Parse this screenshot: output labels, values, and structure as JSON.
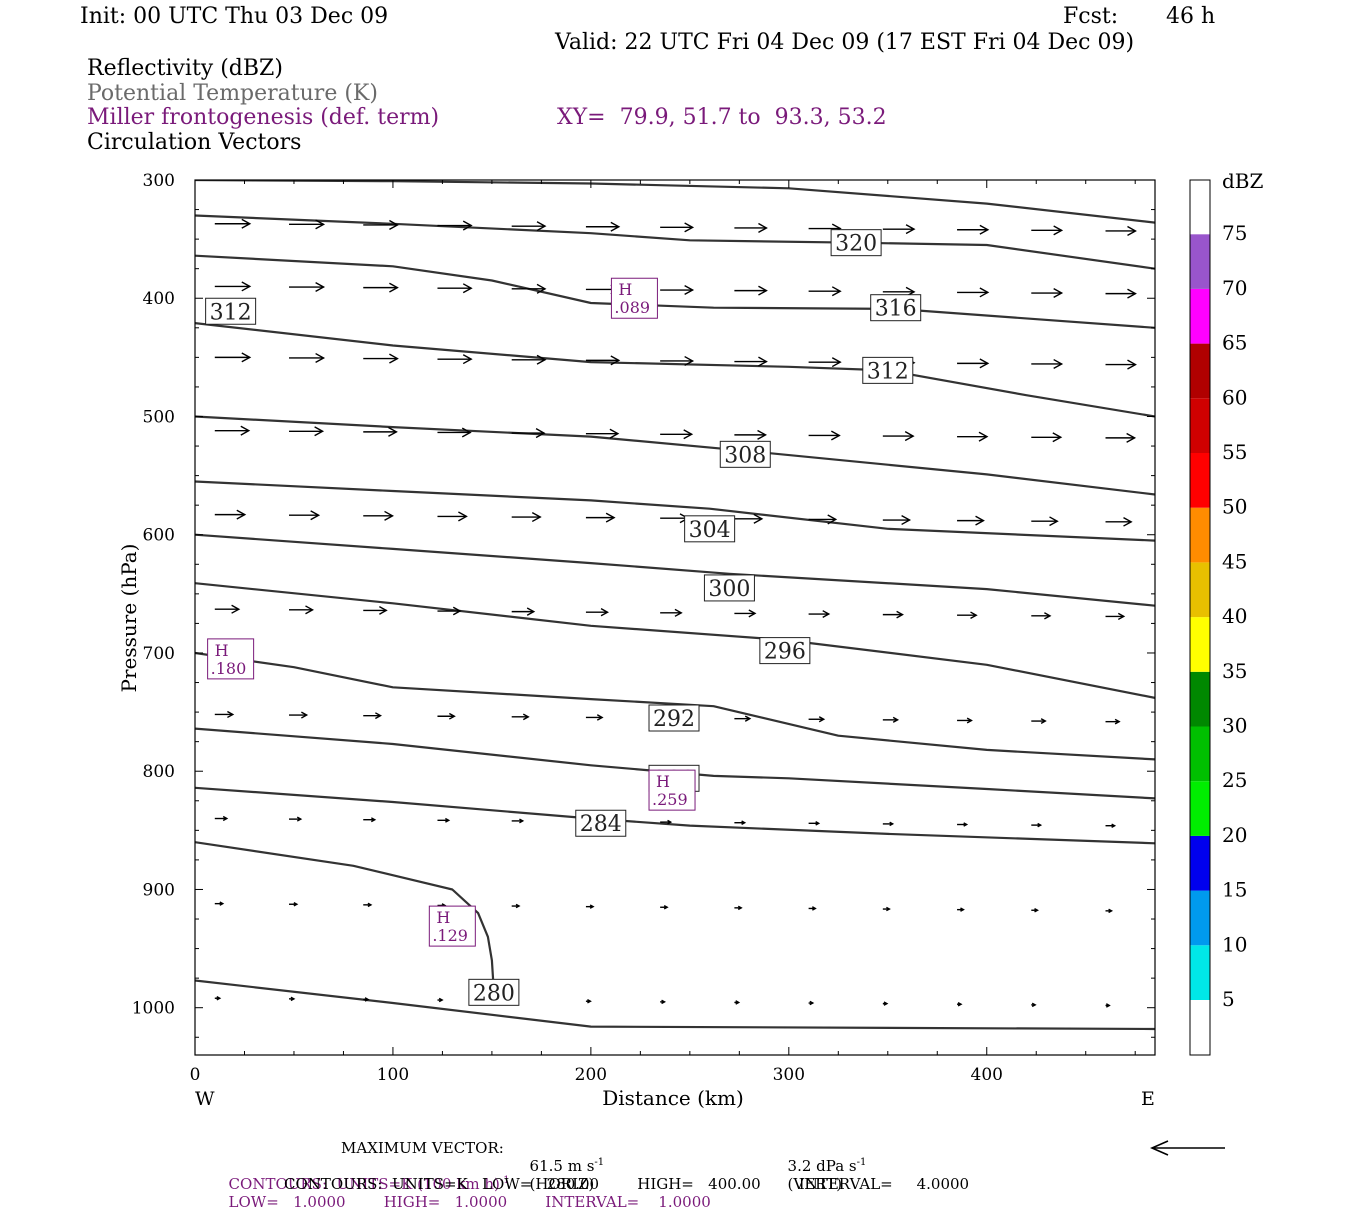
{
  "header": {
    "init": "Init: 00 UTC Thu 03 Dec 09",
    "fcst_label": "Fcst:",
    "fcst_value": "46 h",
    "valid": "Valid: 22 UTC Fri 04 Dec 09 (17 EST Fri 04 Dec 09)",
    "fields": {
      "reflectivity": "Reflectivity (dBZ)",
      "theta": "Potential Temperature (K)",
      "frontogenesis": "Miller frontogenesis (def. term)",
      "circulation": "Circulation Vectors"
    },
    "xy": "XY=  79.9, 51.7 to  93.3, 53.2"
  },
  "colors": {
    "contour": "#333333",
    "purple": "#7a1a7a",
    "theta_text": "#6a6a6a"
  },
  "chart_data": {
    "type": "line",
    "title": "",
    "xlabel": "Distance (km)",
    "ylabel": "Pressure (hPa)",
    "xlim": [
      0,
      485
    ],
    "ylim": [
      1040,
      300
    ],
    "y_scale": "linear-inverted",
    "x_ticks": [
      "0",
      "100",
      "200",
      "300",
      "400"
    ],
    "y_ticks": [
      "300",
      "400",
      "500",
      "600",
      "700",
      "800",
      "900",
      "1000"
    ],
    "x_ends": {
      "left": "W",
      "right": "E"
    },
    "theta_contours": [
      {
        "label": "284",
        "label_at": [
          205,
          844
        ],
        "points": [
          [
            0,
            814
          ],
          [
            100,
            826
          ],
          [
            200,
            840
          ],
          [
            250,
            846
          ],
          [
            350,
            853
          ],
          [
            485,
            861
          ]
        ]
      },
      {
        "label": "288",
        "label_at": [
          242,
          806
        ],
        "points": [
          [
            0,
            764
          ],
          [
            100,
            777
          ],
          [
            200,
            795
          ],
          [
            262,
            804
          ],
          [
            300,
            806
          ],
          [
            400,
            815
          ],
          [
            485,
            823
          ]
        ]
      },
      {
        "label": "292",
        "label_at": [
          242,
          755
        ],
        "points": [
          [
            0,
            700
          ],
          [
            50,
            712
          ],
          [
            100,
            729
          ],
          [
            200,
            739
          ],
          [
            262,
            745
          ],
          [
            325,
            770
          ],
          [
            400,
            782
          ],
          [
            485,
            790
          ]
        ]
      },
      {
        "label": "296",
        "label_at": [
          298,
          698
        ],
        "points": [
          [
            0,
            641
          ],
          [
            100,
            658
          ],
          [
            200,
            677
          ],
          [
            298,
            689
          ],
          [
            400,
            710
          ],
          [
            485,
            738
          ]
        ]
      },
      {
        "label": "300",
        "label_at": [
          270,
          645
        ],
        "points": [
          [
            0,
            600
          ],
          [
            100,
            612
          ],
          [
            200,
            624
          ],
          [
            270,
            633
          ],
          [
            400,
            646
          ],
          [
            485,
            660
          ]
        ]
      },
      {
        "label": "304",
        "label_at": [
          260,
          595
        ],
        "points": [
          [
            0,
            555
          ],
          [
            100,
            563
          ],
          [
            200,
            571
          ],
          [
            260,
            578
          ],
          [
            350,
            595
          ],
          [
            485,
            605
          ]
        ]
      },
      {
        "label": "308",
        "label_at": [
          278,
          532
        ],
        "points": [
          [
            0,
            500
          ],
          [
            100,
            509
          ],
          [
            200,
            517
          ],
          [
            278,
            529
          ],
          [
            400,
            549
          ],
          [
            485,
            566
          ]
        ]
      },
      {
        "label": "312",
        "label_at": [
          350,
          461
        ],
        "points": [
          [
            0,
            421
          ],
          [
            100,
            440
          ],
          [
            200,
            454
          ],
          [
            300,
            458
          ],
          [
            350,
            461
          ],
          [
            420,
            482
          ],
          [
            485,
            500
          ]
        ]
      },
      {
        "label": "312",
        "label_at": [
          18,
          411
        ],
        "points": []
      },
      {
        "label": "316",
        "label_at": [
          354,
          408
        ],
        "points": [
          [
            0,
            364
          ],
          [
            100,
            373
          ],
          [
            150,
            385
          ],
          [
            200,
            404
          ],
          [
            262,
            408
          ],
          [
            354,
            409
          ],
          [
            485,
            425
          ]
        ]
      },
      {
        "label": "320",
        "label_at": [
          334,
          353
        ],
        "points": [
          [
            0,
            330
          ],
          [
            100,
            337
          ],
          [
            200,
            345
          ],
          [
            250,
            351
          ],
          [
            334,
            353
          ],
          [
            400,
            355
          ],
          [
            485,
            375
          ]
        ]
      },
      {
        "label": "",
        "label_at": null,
        "points": [
          [
            0,
            300
          ],
          [
            100,
            301
          ],
          [
            200,
            303
          ],
          [
            300,
            307
          ],
          [
            400,
            320
          ],
          [
            485,
            336
          ]
        ]
      },
      {
        "label": "280",
        "label_at": [
          151,
          987
        ],
        "points": [
          [
            0,
            860
          ],
          [
            80,
            880
          ],
          [
            130,
            900
          ],
          [
            143,
            920
          ],
          [
            148,
            940
          ],
          [
            150,
            960
          ],
          [
            151,
            987
          ]
        ]
      },
      {
        "label": "",
        "label_at": null,
        "points": [
          [
            0,
            977
          ],
          [
            100,
            996
          ],
          [
            200,
            1016
          ],
          [
            485,
            1018
          ]
        ]
      }
    ],
    "frontogenesis_maxima": [
      {
        "mark": "H",
        "value": ".089",
        "at": [
          222,
          400
        ]
      },
      {
        "mark": "H",
        "value": ".180",
        "at": [
          18,
          705
        ]
      },
      {
        "mark": "H",
        "value": ".259",
        "at": [
          241,
          816
        ]
      },
      {
        "mark": "H",
        "value": ".129",
        "at": [
          130,
          931
        ]
      }
    ],
    "vector_rows": [
      {
        "p": 337,
        "len": 35
      },
      {
        "p": 390,
        "len": 35
      },
      {
        "p": 450,
        "len": 35
      },
      {
        "p": 512,
        "len": 34
      },
      {
        "p": 583,
        "len": 30
      },
      {
        "p": 663,
        "len": 24
      },
      {
        "p": 752,
        "len": 18
      },
      {
        "p": 840,
        "len": 12
      },
      {
        "p": 912,
        "len": 8
      },
      {
        "p": 992,
        "len": 5
      }
    ],
    "reflectivity_colorbar": {
      "unit": "dBZ",
      "levels": [
        "5",
        "10",
        "15",
        "20",
        "25",
        "30",
        "35",
        "40",
        "45",
        "50",
        "55",
        "60",
        "65",
        "70",
        "75"
      ],
      "colors": [
        "#ffffff",
        "#00e8e8",
        "#009aee",
        "#0000ee",
        "#00ee00",
        "#00c000",
        "#008800",
        "#ffff00",
        "#e8c000",
        "#ff8c00",
        "#ff0000",
        "#d00000",
        "#b00000",
        "#ff00ff",
        "#9955cc",
        "#ffffff"
      ]
    }
  },
  "footer": {
    "max_vector_label": "MAXIMUM VECTOR:",
    "max_vector_horiz_value": "61.5 m s",
    "max_vector_horiz_sup": "-1",
    "max_vector_horiz_tag": "(HORIZ)",
    "max_vector_vert_value": "3.2 dPa s",
    "max_vector_vert_sup": "-1",
    "max_vector_vert_tag": "(VERT)",
    "contours_purple_a": "CONTOURS:  UNITS=K (100 km h)",
    "contours_purple_sup": "-1",
    "contours_purple_b": "LOW=   1.0000        HIGH=   1.0000        INTERVAL=    1.0000",
    "contours_black": "CONTOURS:  UNITS=K   LOW=   280.00        HIGH=   400.00        INTERVAL=     4.0000"
  }
}
